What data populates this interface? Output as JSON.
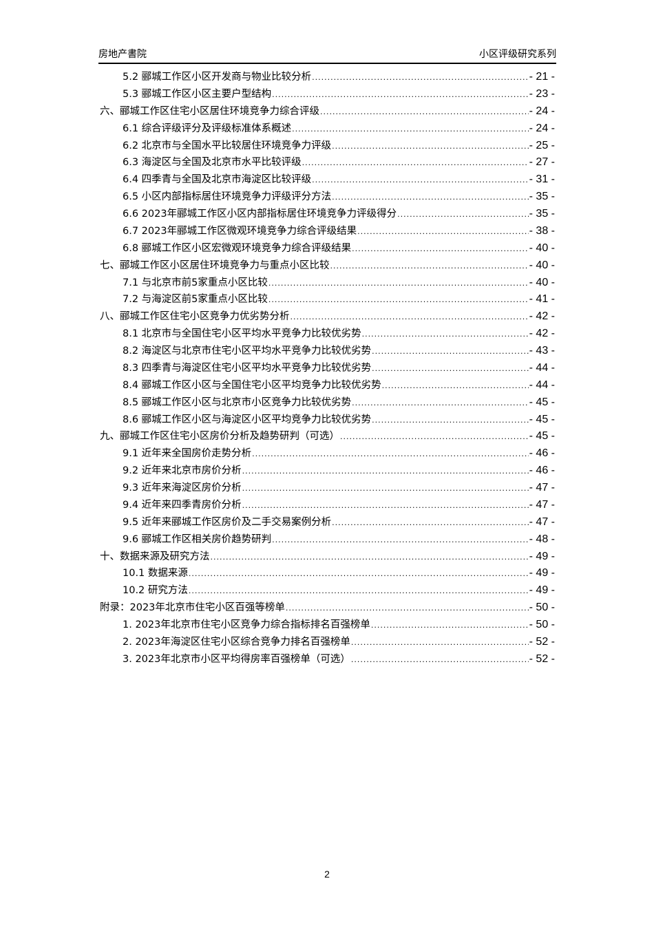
{
  "header": {
    "left": "房地产書院",
    "right": "小区评级研究系列"
  },
  "toc": [
    {
      "level": 2,
      "title": "5.2 郦城工作区小区开发商与物业比较分析",
      "page": "- 21 -"
    },
    {
      "level": 2,
      "title": "5.3 郦城工作区小区主要户型结构",
      "page": "- 23 -"
    },
    {
      "level": 1,
      "title": "六、郦城工作区住宅小区居住环境竞争力综合评级",
      "page": "- 24 -"
    },
    {
      "level": 2,
      "title": "6.1 综合评级评分及评级标准体系概述",
      "page": "- 24 -"
    },
    {
      "level": 2,
      "title": "6.2 北京市与全国水平比较居住环境竞争力评级",
      "page": "- 25 -"
    },
    {
      "level": 2,
      "title": "6.3 海淀区与全国及北京市水平比较评级",
      "page": "- 27 -"
    },
    {
      "level": 2,
      "title": "6.4 四季青与全国及北京市海淀区比较评级",
      "page": "- 31 -"
    },
    {
      "level": 2,
      "title": "6.5 小区内部指标居住环境竞争力评级评分方法",
      "page": "- 35 -"
    },
    {
      "level": 2,
      "title": "6.6 2023年郦城工作区小区内部指标居住环境竞争力评级得分",
      "page": "- 35 -"
    },
    {
      "level": 2,
      "title": "6.7 2023年郦城工作区微观环境竞争力综合评级结果",
      "page": "- 38 -"
    },
    {
      "level": 2,
      "title": "6.8 郦城工作区小区宏微观环境竞争力综合评级结果",
      "page": "- 40 -"
    },
    {
      "level": 1,
      "title": "七、郦城工作区小区居住环境竞争力与重点小区比较",
      "page": "- 40 -"
    },
    {
      "level": 2,
      "title": "7.1 与北京市前5家重点小区比较",
      "page": "- 40 -"
    },
    {
      "level": 2,
      "title": "7.2 与海淀区前5家重点小区比较",
      "page": "- 41 -"
    },
    {
      "level": 1,
      "title": "八、郦城工作区住宅小区竞争力优劣势分析",
      "page": "- 42 -"
    },
    {
      "level": 2,
      "title": "8.1 北京市与全国住宅小区平均水平竞争力比较优劣势",
      "page": "- 42 -"
    },
    {
      "level": 2,
      "title": "8.2 海淀区与北京市住宅小区平均水平竞争力比较优劣势",
      "page": "- 43 -"
    },
    {
      "level": 2,
      "title": "8.3 四季青与海淀区住宅小区平均水平竞争力比较优劣势",
      "page": "- 44 -"
    },
    {
      "level": 2,
      "title": "8.4 郦城工作区小区与全国住宅小区平均竞争力比较优劣势",
      "page": "- 44 -"
    },
    {
      "level": 2,
      "title": "8.5 郦城工作区小区与北京市小区竞争力比较优劣势",
      "page": "- 45 -"
    },
    {
      "level": 2,
      "title": "8.6 郦城工作区小区与海淀区小区平均竞争力比较优劣势",
      "page": "- 45 -"
    },
    {
      "level": 1,
      "title": "九、郦城工作区住宅小区房价分析及趋势研判（可选）",
      "page": "- 45 -"
    },
    {
      "level": 2,
      "title": "9.1 近年来全国房价走势分析",
      "page": "- 46 -"
    },
    {
      "level": 2,
      "title": "9.2 近年来北京市房价分析",
      "page": "- 46 -"
    },
    {
      "level": 2,
      "title": "9.3 近年来海淀区房价分析",
      "page": "- 47 -"
    },
    {
      "level": 2,
      "title": "9.4 近年来四季青房价分析",
      "page": "- 47 -"
    },
    {
      "level": 2,
      "title": "9.5 近年来郦城工作区房价及二手交易案例分析",
      "page": "- 47 -"
    },
    {
      "level": 2,
      "title": "9.6 郦城工作区相关房价趋势研判",
      "page": "- 48 -"
    },
    {
      "level": 1,
      "title": "十、数据来源及研究方法",
      "page": "- 49 -"
    },
    {
      "level": 2,
      "title": "10.1 数据来源",
      "page": "- 49 -"
    },
    {
      "level": 2,
      "title": "10.2 研究方法",
      "page": "- 49 -"
    },
    {
      "level": 1,
      "title": "附录：2023年北京市住宅小区百强等榜单",
      "page": "- 50 -"
    },
    {
      "level": 2,
      "title": "1. 2023年北京市住宅小区竞争力综合指标排名百强榜单",
      "page": "- 50 -"
    },
    {
      "level": 2,
      "title": "2. 2023年海淀区住宅小区综合竞争力排名百强榜单",
      "page": "- 52 -"
    },
    {
      "level": 2,
      "title": "3. 2023年北京市小区平均得房率百强榜单（可选）",
      "page": "- 52 -"
    }
  ],
  "footer": {
    "page_number": "2"
  }
}
